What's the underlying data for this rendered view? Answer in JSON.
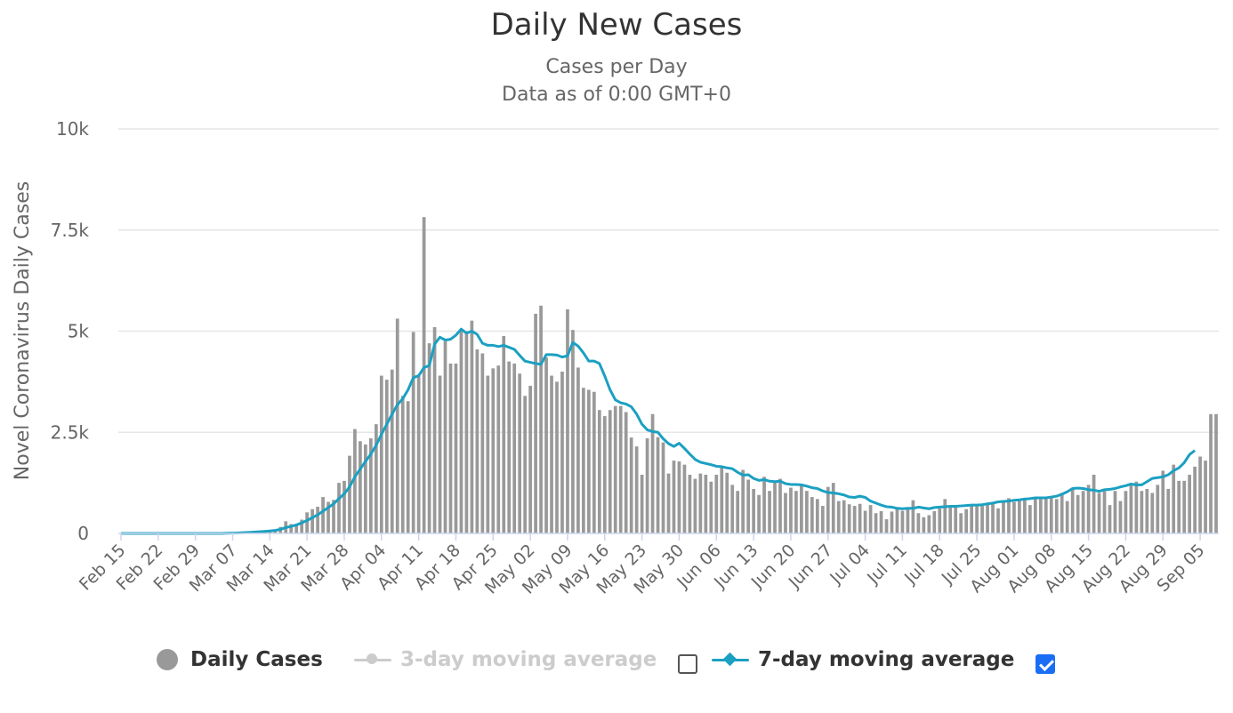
{
  "chart_data": {
    "type": "bar",
    "title": "Daily New Cases",
    "subtitle": [
      "Cases per Day",
      "Data as of 0:00 GMT+0"
    ],
    "ylabel": "Novel Coronavirus Daily Cases",
    "ylim": [
      0,
      10000
    ],
    "yticks": [
      "0",
      "2.5k",
      "5k",
      "7.5k",
      "10k"
    ],
    "ytick_values": [
      0,
      2500,
      5000,
      7500,
      10000
    ],
    "xticks": [
      "Feb 15",
      "Feb 22",
      "Feb 29",
      "Mar 07",
      "Mar 14",
      "Mar 21",
      "Mar 28",
      "Apr 04",
      "Apr 11",
      "Apr 18",
      "Apr 25",
      "May 02",
      "May 09",
      "May 16",
      "May 23",
      "May 30",
      "Jun 06",
      "Jun 13",
      "Jun 20",
      "Jun 27",
      "Jul 04",
      "Jul 11",
      "Jul 18",
      "Jul 25",
      "Aug 01",
      "Aug 08",
      "Aug 15",
      "Aug 22",
      "Aug 29",
      "Sep 05"
    ],
    "start_date": "Feb 15",
    "grid": true,
    "colors": {
      "bars": "#999999",
      "ma7": "#1ba0c2",
      "ma3": "#cccccc",
      "grid": "#e6e6e6",
      "axis": "#ccd6eb"
    },
    "series": [
      {
        "name": "Daily Cases",
        "values": [
          0,
          0,
          0,
          0,
          0,
          0,
          0,
          0,
          0,
          0,
          0,
          0,
          0,
          0,
          0,
          0,
          0,
          0,
          0,
          0,
          10,
          10,
          20,
          30,
          40,
          50,
          60,
          70,
          80,
          100,
          160,
          300,
          230,
          200,
          340,
          520,
          600,
          660,
          900,
          780,
          830,
          1250,
          1300,
          1920,
          2580,
          2280,
          2200,
          2350,
          2700,
          3900,
          3800,
          4050,
          5310,
          3400,
          3270,
          4980,
          3900,
          7820,
          4700,
          5100,
          3900,
          4750,
          4200,
          4200,
          5050,
          5000,
          5260,
          4550,
          4450,
          3900,
          4080,
          4150,
          4880,
          4250,
          4200,
          3950,
          3400,
          3650,
          5430,
          5630,
          4350,
          3900,
          3750,
          4000,
          5540,
          5030,
          4100,
          3600,
          3550,
          3500,
          3050,
          2900,
          3050,
          3150,
          3150,
          3000,
          2370,
          2150,
          1450,
          2350,
          2950,
          2380,
          2250,
          1480,
          1800,
          1780,
          1700,
          1450,
          1350,
          1480,
          1450,
          1280,
          1450,
          1650,
          1500,
          1200,
          1050,
          1570,
          1330,
          1100,
          950,
          1400,
          1050,
          1300,
          1350,
          1000,
          1130,
          1050,
          1200,
          1050,
          900,
          850,
          680,
          1150,
          1250,
          800,
          820,
          720,
          680,
          730,
          560,
          700,
          500,
          550,
          350,
          540,
          600,
          560,
          600,
          820,
          500,
          400,
          450,
          550,
          620,
          850,
          650,
          700,
          500,
          600,
          700,
          700,
          680,
          700,
          750,
          620,
          800,
          870,
          780,
          800,
          880,
          700,
          900,
          850,
          900,
          880,
          850,
          1000,
          800,
          1130,
          950,
          1050,
          1200,
          1450,
          1000,
          1050,
          700,
          1050,
          800,
          1050,
          1200,
          1280,
          1050,
          1100,
          1000,
          1200,
          1550,
          1100,
          1700,
          1300,
          1300,
          1450,
          1650,
          1900,
          1800,
          2950,
          2950
        ]
      },
      {
        "name": "7-day moving average",
        "values": [
          0,
          0,
          0,
          0,
          0,
          0,
          0,
          0,
          0,
          0,
          0,
          0,
          0,
          0,
          0,
          0,
          0,
          0,
          0,
          0,
          5,
          8,
          12,
          18,
          25,
          33,
          42,
          50,
          60,
          75,
          100,
          145,
          175,
          210,
          260,
          320,
          390,
          460,
          550,
          640,
          730,
          860,
          980,
          1150,
          1400,
          1590,
          1780,
          1960,
          2180,
          2450,
          2700,
          2950,
          3180,
          3330,
          3550,
          3850,
          3900,
          4100,
          4150,
          4680,
          4850,
          4780,
          4800,
          4900,
          5050,
          4950,
          5000,
          4920,
          4700,
          4650,
          4650,
          4620,
          4650,
          4600,
          4550,
          4400,
          4260,
          4230,
          4200,
          4180,
          4420,
          4420,
          4410,
          4360,
          4390,
          4720,
          4630,
          4460,
          4260,
          4260,
          4200,
          3890,
          3550,
          3300,
          3230,
          3200,
          3130,
          2950,
          2700,
          2560,
          2520,
          2500,
          2340,
          2220,
          2150,
          2230,
          2100,
          1960,
          1830,
          1760,
          1730,
          1700,
          1660,
          1650,
          1620,
          1600,
          1510,
          1440,
          1450,
          1360,
          1310,
          1330,
          1290,
          1280,
          1290,
          1230,
          1210,
          1210,
          1200,
          1170,
          1130,
          1110,
          1050,
          1010,
          1000,
          980,
          950,
          900,
          890,
          920,
          890,
          800,
          750,
          700,
          660,
          650,
          620,
          610,
          620,
          620,
          650,
          630,
          610,
          640,
          650,
          660,
          670,
          670,
          680,
          690,
          700,
          700,
          710,
          730,
          750,
          780,
          790,
          800,
          820,
          830,
          850,
          860,
          880,
          880,
          880,
          900,
          920,
          970,
          1030,
          1110,
          1120,
          1110,
          1080,
          1070,
          1040,
          1080,
          1090,
          1110,
          1150,
          1180,
          1220,
          1200,
          1200,
          1280,
          1360,
          1380,
          1400,
          1450,
          1550,
          1620,
          1750,
          1950,
          2050
        ]
      }
    ]
  },
  "legend": {
    "daily_label": "Daily Cases",
    "ma3_label": "3-day moving average",
    "ma7_label": "7-day moving average",
    "ma3_checked": false,
    "ma7_checked": true
  }
}
